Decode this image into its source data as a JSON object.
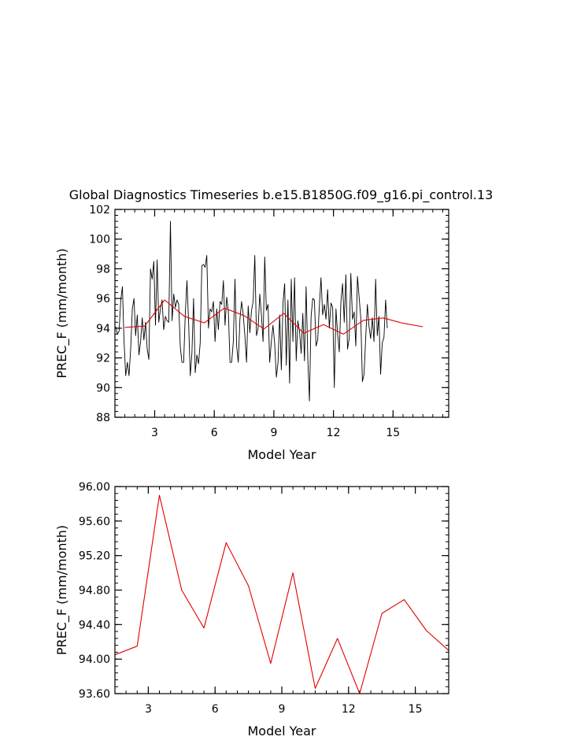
{
  "colors": {
    "monthly_line": "#000000",
    "annual_line": "#e00000",
    "frame": "#000000"
  },
  "chart_data": [
    {
      "type": "line",
      "title": "Global Diagnostics Timeseries b.e15.B1850G.f09_g16.pi_control.13",
      "xlabel": "Model Year",
      "ylabel": "PREC_F (mm/month)",
      "xlim": [
        1.0,
        17.8
      ],
      "ylim": [
        88,
        102
      ],
      "xticks": [
        3,
        6,
        9,
        12,
        15
      ],
      "yticks": [
        88,
        90,
        92,
        94,
        96,
        98,
        100,
        102
      ],
      "ytick_labels": [
        "88",
        "90",
        "92",
        "94",
        "96",
        "98",
        "100",
        "102"
      ],
      "series": [
        {
          "name": "monthly",
          "color": "#000000",
          "x_start": 1.0417,
          "x_step": 0.08333,
          "values": [
            94.1,
            93.6,
            93.8,
            95.9,
            96.8,
            93.1,
            90.8,
            91.7,
            90.8,
            92.6,
            95.3,
            96.0,
            93.5,
            94.9,
            92.2,
            93.1,
            94.7,
            93.2,
            94.4,
            92.6,
            91.9,
            98.0,
            97.3,
            98.5,
            94.2,
            98.6,
            94.4,
            95.3,
            95.9,
            93.9,
            94.8,
            94.5,
            94.4,
            101.2,
            94.5,
            96.3,
            95.4,
            95.9,
            95.6,
            92.7,
            91.7,
            91.7,
            95.0,
            97.2,
            94.4,
            90.8,
            92.3,
            96.0,
            91.0,
            92.2,
            91.6,
            93.0,
            98.2,
            98.3,
            98.1,
            98.9,
            94.0,
            95.3,
            95.1,
            95.8,
            93.1,
            95.3,
            93.9,
            95.8,
            95.6,
            97.2,
            94.2,
            96.1,
            95.1,
            91.7,
            91.7,
            93.1,
            97.3,
            92.8,
            91.7,
            94.6,
            95.8,
            94.9,
            93.5,
            91.7,
            95.5,
            93.7,
            95.2,
            95.8,
            98.9,
            93.5,
            94.0,
            96.3,
            94.9,
            93.1,
            98.8,
            95.2,
            95.6,
            91.7,
            93.1,
            94.2,
            93.0,
            90.7,
            91.7,
            94.9,
            91.2,
            95.7,
            97.0,
            91.5,
            95.9,
            90.3,
            97.3,
            93.1,
            97.4,
            91.8,
            94.5,
            93.8,
            92.3,
            95.0,
            91.8,
            96.8,
            92.0,
            89.1,
            94.8,
            96.0,
            95.9,
            92.8,
            93.2,
            95.5,
            97.4,
            94.9,
            95.6,
            94.6,
            96.6,
            94.0,
            95.7,
            95.4,
            90.0,
            95.3,
            93.6,
            92.4,
            95.8,
            97.0,
            94.4,
            97.6,
            92.6,
            93.3,
            97.7,
            94.6,
            95.1,
            92.8,
            97.5,
            96.1,
            94.7,
            90.4,
            90.9,
            93.4,
            95.6,
            94.1,
            93.3,
            94.7,
            93.1,
            97.3,
            93.5,
            94.8,
            90.9,
            93.0,
            93.4,
            95.9,
            94.0
          ]
        },
        {
          "name": "annual",
          "color": "#e00000",
          "x": [
            1.5,
            2.5,
            3.5,
            4.5,
            5.5,
            6.5,
            7.5,
            8.5,
            9.5,
            10.5,
            11.5,
            12.5,
            13.5,
            14.5,
            15.5,
            16.5
          ],
          "values": [
            94.05,
            94.15,
            95.9,
            94.8,
            94.36,
            95.35,
            94.85,
            93.95,
            95.0,
            93.66,
            94.24,
            93.6,
            94.53,
            94.69,
            94.33,
            94.1
          ]
        }
      ]
    },
    {
      "type": "line",
      "xlabel": "Model Year",
      "ylabel": "PREC_F (mm/month)",
      "xlim": [
        1.5,
        16.5
      ],
      "ylim": [
        93.6,
        96.0
      ],
      "xticks": [
        3,
        6,
        9,
        12,
        15
      ],
      "yticks": [
        93.6,
        94.0,
        94.4,
        94.8,
        95.2,
        95.6,
        96.0
      ],
      "ytick_labels": [
        "93.60",
        "94.00",
        "94.40",
        "94.80",
        "95.20",
        "95.60",
        "96.00"
      ],
      "series": [
        {
          "name": "annual",
          "color": "#e00000",
          "x": [
            1.5,
            2.5,
            3.5,
            4.5,
            5.5,
            6.5,
            7.5,
            8.5,
            9.5,
            10.5,
            11.5,
            12.5,
            13.5,
            14.5,
            15.5,
            16.5
          ],
          "values": [
            94.05,
            94.15,
            95.9,
            94.8,
            94.36,
            95.35,
            94.85,
            93.95,
            95.0,
            93.66,
            94.24,
            93.6,
            94.53,
            94.69,
            94.33,
            94.1
          ]
        }
      ]
    }
  ]
}
